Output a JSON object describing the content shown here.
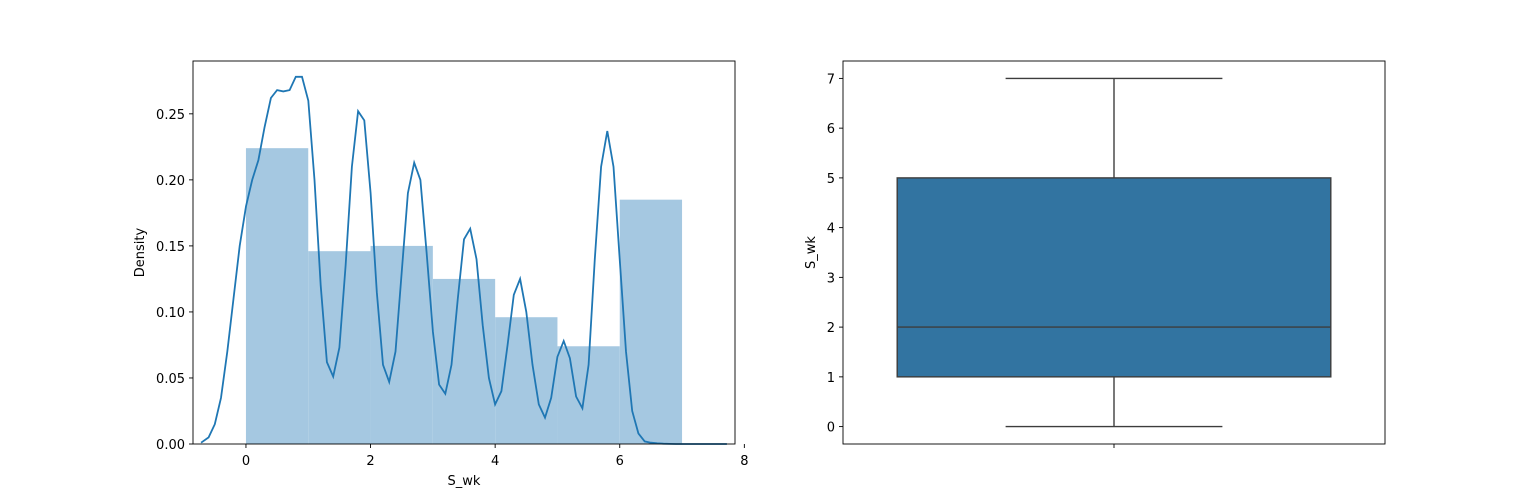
{
  "chart_data": [
    {
      "type": "histogram_kde",
      "xlabel": "S_wk",
      "ylabel": "Density",
      "xlim": [
        -0.85,
        7.85
      ],
      "ylim": [
        0,
        0.29
      ],
      "xticks": [
        0,
        2,
        4,
        6,
        8
      ],
      "yticks": [
        0.0,
        0.05,
        0.1,
        0.15,
        0.2,
        0.25
      ],
      "ytick_labels": [
        "0.00",
        "0.05",
        "0.10",
        "0.15",
        "0.20",
        "0.25"
      ],
      "bins": [
        {
          "x0": 0,
          "x1": 1,
          "density": 0.224
        },
        {
          "x0": 1,
          "x1": 2,
          "density": 0.146
        },
        {
          "x0": 2,
          "x1": 3,
          "density": 0.15
        },
        {
          "x0": 3,
          "x1": 4,
          "density": 0.125
        },
        {
          "x0": 4,
          "x1": 5,
          "density": 0.096
        },
        {
          "x0": 5,
          "x1": 6,
          "density": 0.074
        },
        {
          "x0": 6,
          "x1": 7,
          "density": 0.185
        }
      ],
      "kde": {
        "x": [
          -0.72,
          -0.6,
          -0.5,
          -0.4,
          -0.3,
          -0.2,
          -0.1,
          0,
          0.1,
          0.2,
          0.3,
          0.4,
          0.5,
          0.6,
          0.7,
          0.8,
          0.9,
          1.0,
          1.1,
          1.2,
          1.3,
          1.4,
          1.5,
          1.6,
          1.7,
          1.8,
          1.9,
          2.0,
          2.1,
          2.2,
          2.3,
          2.4,
          2.5,
          2.6,
          2.7,
          2.8,
          2.9,
          3.0,
          3.1,
          3.2,
          3.3,
          3.4,
          3.5,
          3.6,
          3.7,
          3.8,
          3.9,
          4.0,
          4.1,
          4.2,
          4.3,
          4.4,
          4.5,
          4.6,
          4.7,
          4.8,
          4.9,
          5.0,
          5.1,
          5.2,
          5.3,
          5.4,
          5.5,
          5.6,
          5.7,
          5.8,
          5.9,
          6.0,
          6.1,
          6.2,
          6.3,
          6.4,
          6.5,
          6.6,
          6.7,
          6.8,
          6.9,
          7.0,
          7.1,
          7.2,
          7.3,
          7.4,
          7.5,
          7.6,
          7.72
        ],
        "y": [
          0.001,
          0.005,
          0.015,
          0.035,
          0.07,
          0.11,
          0.15,
          0.18,
          0.2,
          0.215,
          0.24,
          0.262,
          0.268,
          0.267,
          0.268,
          0.278,
          0.278,
          0.26,
          0.2,
          0.12,
          0.062,
          0.051,
          0.073,
          0.135,
          0.21,
          0.252,
          0.245,
          0.19,
          0.115,
          0.06,
          0.047,
          0.07,
          0.13,
          0.19,
          0.213,
          0.2,
          0.145,
          0.085,
          0.045,
          0.038,
          0.06,
          0.11,
          0.155,
          0.163,
          0.14,
          0.09,
          0.05,
          0.03,
          0.04,
          0.075,
          0.113,
          0.125,
          0.1,
          0.06,
          0.03,
          0.02,
          0.035,
          0.066,
          0.078,
          0.065,
          0.036,
          0.027,
          0.06,
          0.14,
          0.21,
          0.237,
          0.21,
          0.14,
          0.07,
          0.025,
          0.008,
          0.002,
          0.001,
          0.0005,
          0.0002,
          0.0001,
          0.0,
          0.0,
          0.0,
          0.0,
          0.0,
          0.0,
          0.0,
          0.0,
          0.0
        ]
      }
    },
    {
      "type": "box",
      "ylabel": "S_wk",
      "ylim": [
        -0.35,
        7.35
      ],
      "yticks": [
        0,
        1,
        2,
        3,
        4,
        5,
        6,
        7
      ],
      "ytick_labels": [
        "0",
        "1",
        "2",
        "3",
        "4",
        "5",
        "6",
        "7"
      ],
      "whisker_low": 0,
      "q1": 1,
      "median": 2,
      "q3": 5,
      "whisker_high": 7,
      "box_color": "#3274a1",
      "line_color": "#3d3d3d"
    }
  ],
  "colors": {
    "hist_bar": "#a5c8e1",
    "kde_line": "#1f77b4",
    "box_fill": "#3274a1"
  }
}
